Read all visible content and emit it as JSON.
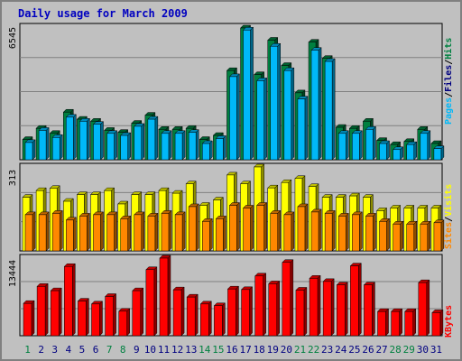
{
  "title": "Daily usage for March 2009",
  "colors": {
    "hits": "#008040",
    "files": "#00b8f8",
    "visits": "#ffff00",
    "sites": "#ff8800",
    "kbytes": "#ff0000",
    "weekend": "#008040",
    "weekday": "#000080",
    "panel": "#c0c0c0",
    "grid": "#808080"
  },
  "chart_data": [
    {
      "type": "bar",
      "panel": "top",
      "y_max_label": "6545",
      "legend": [
        "Pages",
        "/",
        "Files",
        "/",
        "Hits"
      ],
      "ylim": [
        0,
        6545
      ],
      "categories": [
        "1",
        "2",
        "3",
        "4",
        "5",
        "6",
        "7",
        "8",
        "9",
        "10",
        "11",
        "12",
        "13",
        "14",
        "15",
        "16",
        "17",
        "18",
        "19",
        "20",
        "21",
        "22",
        "23",
        "24",
        "25",
        "26",
        "27",
        "28",
        "29",
        "30",
        "31"
      ],
      "series": [
        {
          "name": "Hits",
          "values": [
            1000,
            1550,
            1300,
            2350,
            2000,
            1900,
            1450,
            1350,
            1800,
            2200,
            1500,
            1500,
            1550,
            1000,
            1200,
            4400,
            6500,
            4200,
            5900,
            4650,
            3300,
            5800,
            5000,
            1600,
            1550,
            1900,
            950,
            750,
            900,
            1500,
            800
          ]
        },
        {
          "name": "Files",
          "values": [
            850,
            1450,
            1100,
            2100,
            1900,
            1750,
            1300,
            1200,
            1650,
            2000,
            1300,
            1300,
            1350,
            800,
            1050,
            4100,
            6400,
            3900,
            5600,
            4400,
            3000,
            5400,
            4850,
            1300,
            1300,
            1500,
            800,
            500,
            750,
            1300,
            550
          ]
        }
      ]
    },
    {
      "type": "bar",
      "panel": "middle",
      "y_max_label": "313",
      "legend": [
        "Sites",
        "/",
        "Visits"
      ],
      "ylim": [
        0,
        313
      ],
      "categories": [
        "1",
        "2",
        "3",
        "4",
        "5",
        "6",
        "7",
        "8",
        "9",
        "10",
        "11",
        "12",
        "13",
        "14",
        "15",
        "16",
        "17",
        "18",
        "19",
        "20",
        "21",
        "22",
        "23",
        "24",
        "25",
        "26",
        "27",
        "28",
        "29",
        "30",
        "31"
      ],
      "series": [
        {
          "name": "Visits",
          "values": [
            200,
            225,
            233,
            185,
            210,
            210,
            225,
            175,
            210,
            210,
            225,
            215,
            250,
            170,
            190,
            283,
            250,
            313,
            235,
            255,
            270,
            240,
            200,
            200,
            205,
            200,
            150,
            160,
            160,
            160,
            160
          ]
        },
        {
          "name": "Sites",
          "values": [
            135,
            135,
            140,
            115,
            130,
            135,
            135,
            120,
            135,
            130,
            140,
            135,
            165,
            110,
            120,
            170,
            160,
            170,
            140,
            135,
            165,
            145,
            140,
            130,
            135,
            130,
            110,
            100,
            100,
            100,
            105
          ]
        }
      ]
    },
    {
      "type": "bar",
      "panel": "bottom",
      "y_max_label": "13444",
      "legend": [
        "KBytes"
      ],
      "ylim": [
        0,
        13444
      ],
      "categories": [
        "1",
        "2",
        "3",
        "4",
        "5",
        "6",
        "7",
        "8",
        "9",
        "10",
        "11",
        "12",
        "13",
        "14",
        "15",
        "16",
        "17",
        "18",
        "19",
        "20",
        "21",
        "22",
        "23",
        "24",
        "25",
        "26",
        "27",
        "28",
        "29",
        "30",
        "31"
      ],
      "series": [
        {
          "name": "KBytes",
          "values": [
            5600,
            8550,
            7800,
            12000,
            6000,
            5500,
            6800,
            4250,
            7800,
            11450,
            13444,
            7950,
            6700,
            5500,
            5200,
            8100,
            8000,
            10350,
            9000,
            12700,
            7900,
            9950,
            9400,
            8800,
            12100,
            8800,
            4200,
            4200,
            4200,
            9200,
            4000
          ]
        }
      ]
    }
  ],
  "weekend_days": [
    "1",
    "7",
    "8",
    "14",
    "15",
    "21",
    "22",
    "28",
    "29"
  ]
}
